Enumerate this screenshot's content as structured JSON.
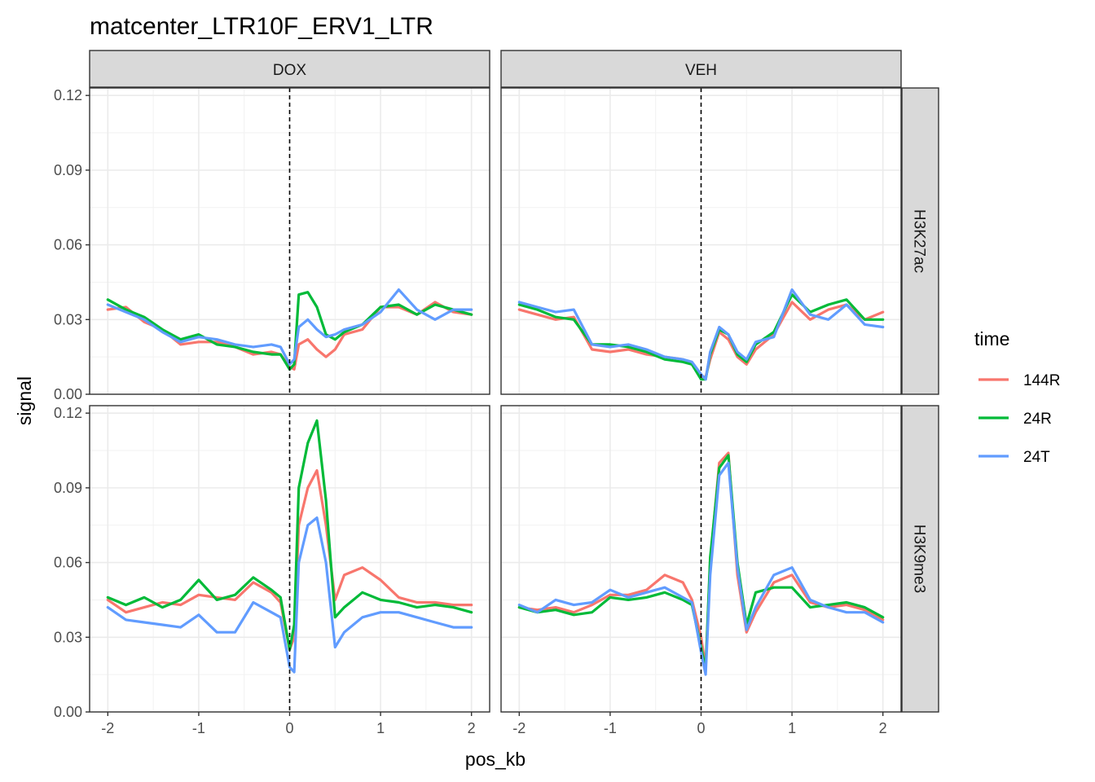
{
  "chart_data": {
    "type": "line",
    "title": "matcenter_LTR10F_ERV1_LTR",
    "xlabel": "pos_kb",
    "ylabel": "signal",
    "xlim": [
      -2.2,
      2.2
    ],
    "ylim": [
      0,
      0.123
    ],
    "x_ticks": [
      "-2",
      "-1",
      "0",
      "1",
      "2"
    ],
    "y_ticks": [
      "0.00",
      "0.03",
      "0.06",
      "0.09",
      "0.12"
    ],
    "vline_x": 0,
    "grid": true,
    "facet_cols": [
      "DOX",
      "VEH"
    ],
    "facet_rows": [
      "H3K27ac",
      "H3K9me3"
    ],
    "legend": {
      "title": "time",
      "position": "right",
      "entries": [
        {
          "name": "144R",
          "color": "#F8766D"
        },
        {
          "name": "24R",
          "color": "#00BA38"
        },
        {
          "name": "24T",
          "color": "#619CFF"
        }
      ]
    },
    "x": [
      -2.0,
      -1.8,
      -1.6,
      -1.4,
      -1.2,
      -1.0,
      -0.8,
      -0.6,
      -0.4,
      -0.2,
      -0.1,
      0.0,
      0.05,
      0.1,
      0.2,
      0.3,
      0.4,
      0.5,
      0.6,
      0.8,
      1.0,
      1.2,
      1.4,
      1.6,
      1.8,
      2.0
    ],
    "panels": [
      {
        "col": "DOX",
        "row": "H3K27ac",
        "series": [
          {
            "name": "144R",
            "values": [
              0.034,
              0.035,
              0.029,
              0.026,
              0.02,
              0.021,
              0.021,
              0.019,
              0.016,
              0.017,
              0.016,
              0.011,
              0.01,
              0.02,
              0.022,
              0.018,
              0.015,
              0.018,
              0.024,
              0.026,
              0.035,
              0.035,
              0.032,
              0.037,
              0.033,
              0.032
            ]
          },
          {
            "name": "24R",
            "values": [
              0.038,
              0.034,
              0.031,
              0.026,
              0.022,
              0.024,
              0.02,
              0.019,
              0.017,
              0.016,
              0.016,
              0.01,
              0.012,
              0.04,
              0.041,
              0.035,
              0.024,
              0.022,
              0.025,
              0.028,
              0.035,
              0.036,
              0.032,
              0.036,
              0.034,
              0.032
            ]
          },
          {
            "name": "24T",
            "values": [
              0.036,
              0.033,
              0.03,
              0.025,
              0.021,
              0.023,
              0.022,
              0.02,
              0.019,
              0.02,
              0.019,
              0.012,
              0.014,
              0.027,
              0.03,
              0.026,
              0.023,
              0.024,
              0.026,
              0.028,
              0.033,
              0.042,
              0.034,
              0.03,
              0.034,
              0.034
            ]
          }
        ]
      },
      {
        "col": "VEH",
        "row": "H3K27ac",
        "series": [
          {
            "name": "144R",
            "values": [
              0.034,
              0.032,
              0.03,
              0.031,
              0.018,
              0.017,
              0.018,
              0.016,
              0.015,
              0.014,
              0.012,
              0.007,
              0.007,
              0.014,
              0.025,
              0.022,
              0.015,
              0.012,
              0.018,
              0.024,
              0.037,
              0.03,
              0.034,
              0.036,
              0.03,
              0.033
            ]
          },
          {
            "name": "24R",
            "values": [
              0.036,
              0.034,
              0.031,
              0.03,
              0.02,
              0.02,
              0.019,
              0.017,
              0.014,
              0.013,
              0.012,
              0.006,
              0.006,
              0.016,
              0.026,
              0.024,
              0.016,
              0.013,
              0.02,
              0.025,
              0.04,
              0.033,
              0.036,
              0.038,
              0.03,
              0.03
            ]
          },
          {
            "name": "24T",
            "values": [
              0.037,
              0.035,
              0.033,
              0.034,
              0.02,
              0.019,
              0.02,
              0.018,
              0.015,
              0.014,
              0.013,
              0.008,
              0.006,
              0.017,
              0.027,
              0.024,
              0.017,
              0.014,
              0.021,
              0.023,
              0.042,
              0.032,
              0.03,
              0.036,
              0.028,
              0.027
            ]
          }
        ]
      },
      {
        "col": "DOX",
        "row": "H3K9me3",
        "series": [
          {
            "name": "144R",
            "values": [
              0.045,
              0.04,
              0.042,
              0.044,
              0.043,
              0.047,
              0.046,
              0.045,
              0.052,
              0.048,
              0.044,
              0.025,
              0.03,
              0.075,
              0.09,
              0.097,
              0.075,
              0.045,
              0.055,
              0.058,
              0.053,
              0.046,
              0.044,
              0.044,
              0.043,
              0.043
            ]
          },
          {
            "name": "24R",
            "values": [
              0.046,
              0.043,
              0.046,
              0.042,
              0.045,
              0.053,
              0.045,
              0.047,
              0.054,
              0.049,
              0.046,
              0.025,
              0.035,
              0.09,
              0.108,
              0.117,
              0.085,
              0.038,
              0.042,
              0.048,
              0.045,
              0.044,
              0.042,
              0.043,
              0.042,
              0.04
            ]
          },
          {
            "name": "24T",
            "values": [
              0.042,
              0.037,
              0.036,
              0.035,
              0.034,
              0.039,
              0.032,
              0.032,
              0.044,
              0.04,
              0.038,
              0.018,
              0.016,
              0.06,
              0.075,
              0.078,
              0.06,
              0.026,
              0.032,
              0.038,
              0.04,
              0.04,
              0.038,
              0.036,
              0.034,
              0.034
            ]
          }
        ]
      },
      {
        "col": "VEH",
        "row": "H3K9me3",
        "series": [
          {
            "name": "144R",
            "values": [
              0.042,
              0.041,
              0.042,
              0.04,
              0.043,
              0.047,
              0.047,
              0.049,
              0.055,
              0.052,
              0.045,
              0.03,
              0.018,
              0.06,
              0.1,
              0.104,
              0.055,
              0.032,
              0.04,
              0.052,
              0.055,
              0.044,
              0.042,
              0.043,
              0.041,
              0.037
            ]
          },
          {
            "name": "24R",
            "values": [
              0.042,
              0.04,
              0.041,
              0.039,
              0.04,
              0.046,
              0.045,
              0.046,
              0.048,
              0.045,
              0.043,
              0.026,
              0.017,
              0.062,
              0.098,
              0.103,
              0.06,
              0.035,
              0.048,
              0.05,
              0.05,
              0.042,
              0.043,
              0.044,
              0.042,
              0.038
            ]
          },
          {
            "name": "24T",
            "values": [
              0.043,
              0.04,
              0.045,
              0.043,
              0.044,
              0.049,
              0.046,
              0.048,
              0.05,
              0.046,
              0.044,
              0.024,
              0.015,
              0.055,
              0.095,
              0.1,
              0.058,
              0.033,
              0.042,
              0.055,
              0.058,
              0.045,
              0.042,
              0.04,
              0.04,
              0.036
            ]
          }
        ]
      }
    ]
  }
}
